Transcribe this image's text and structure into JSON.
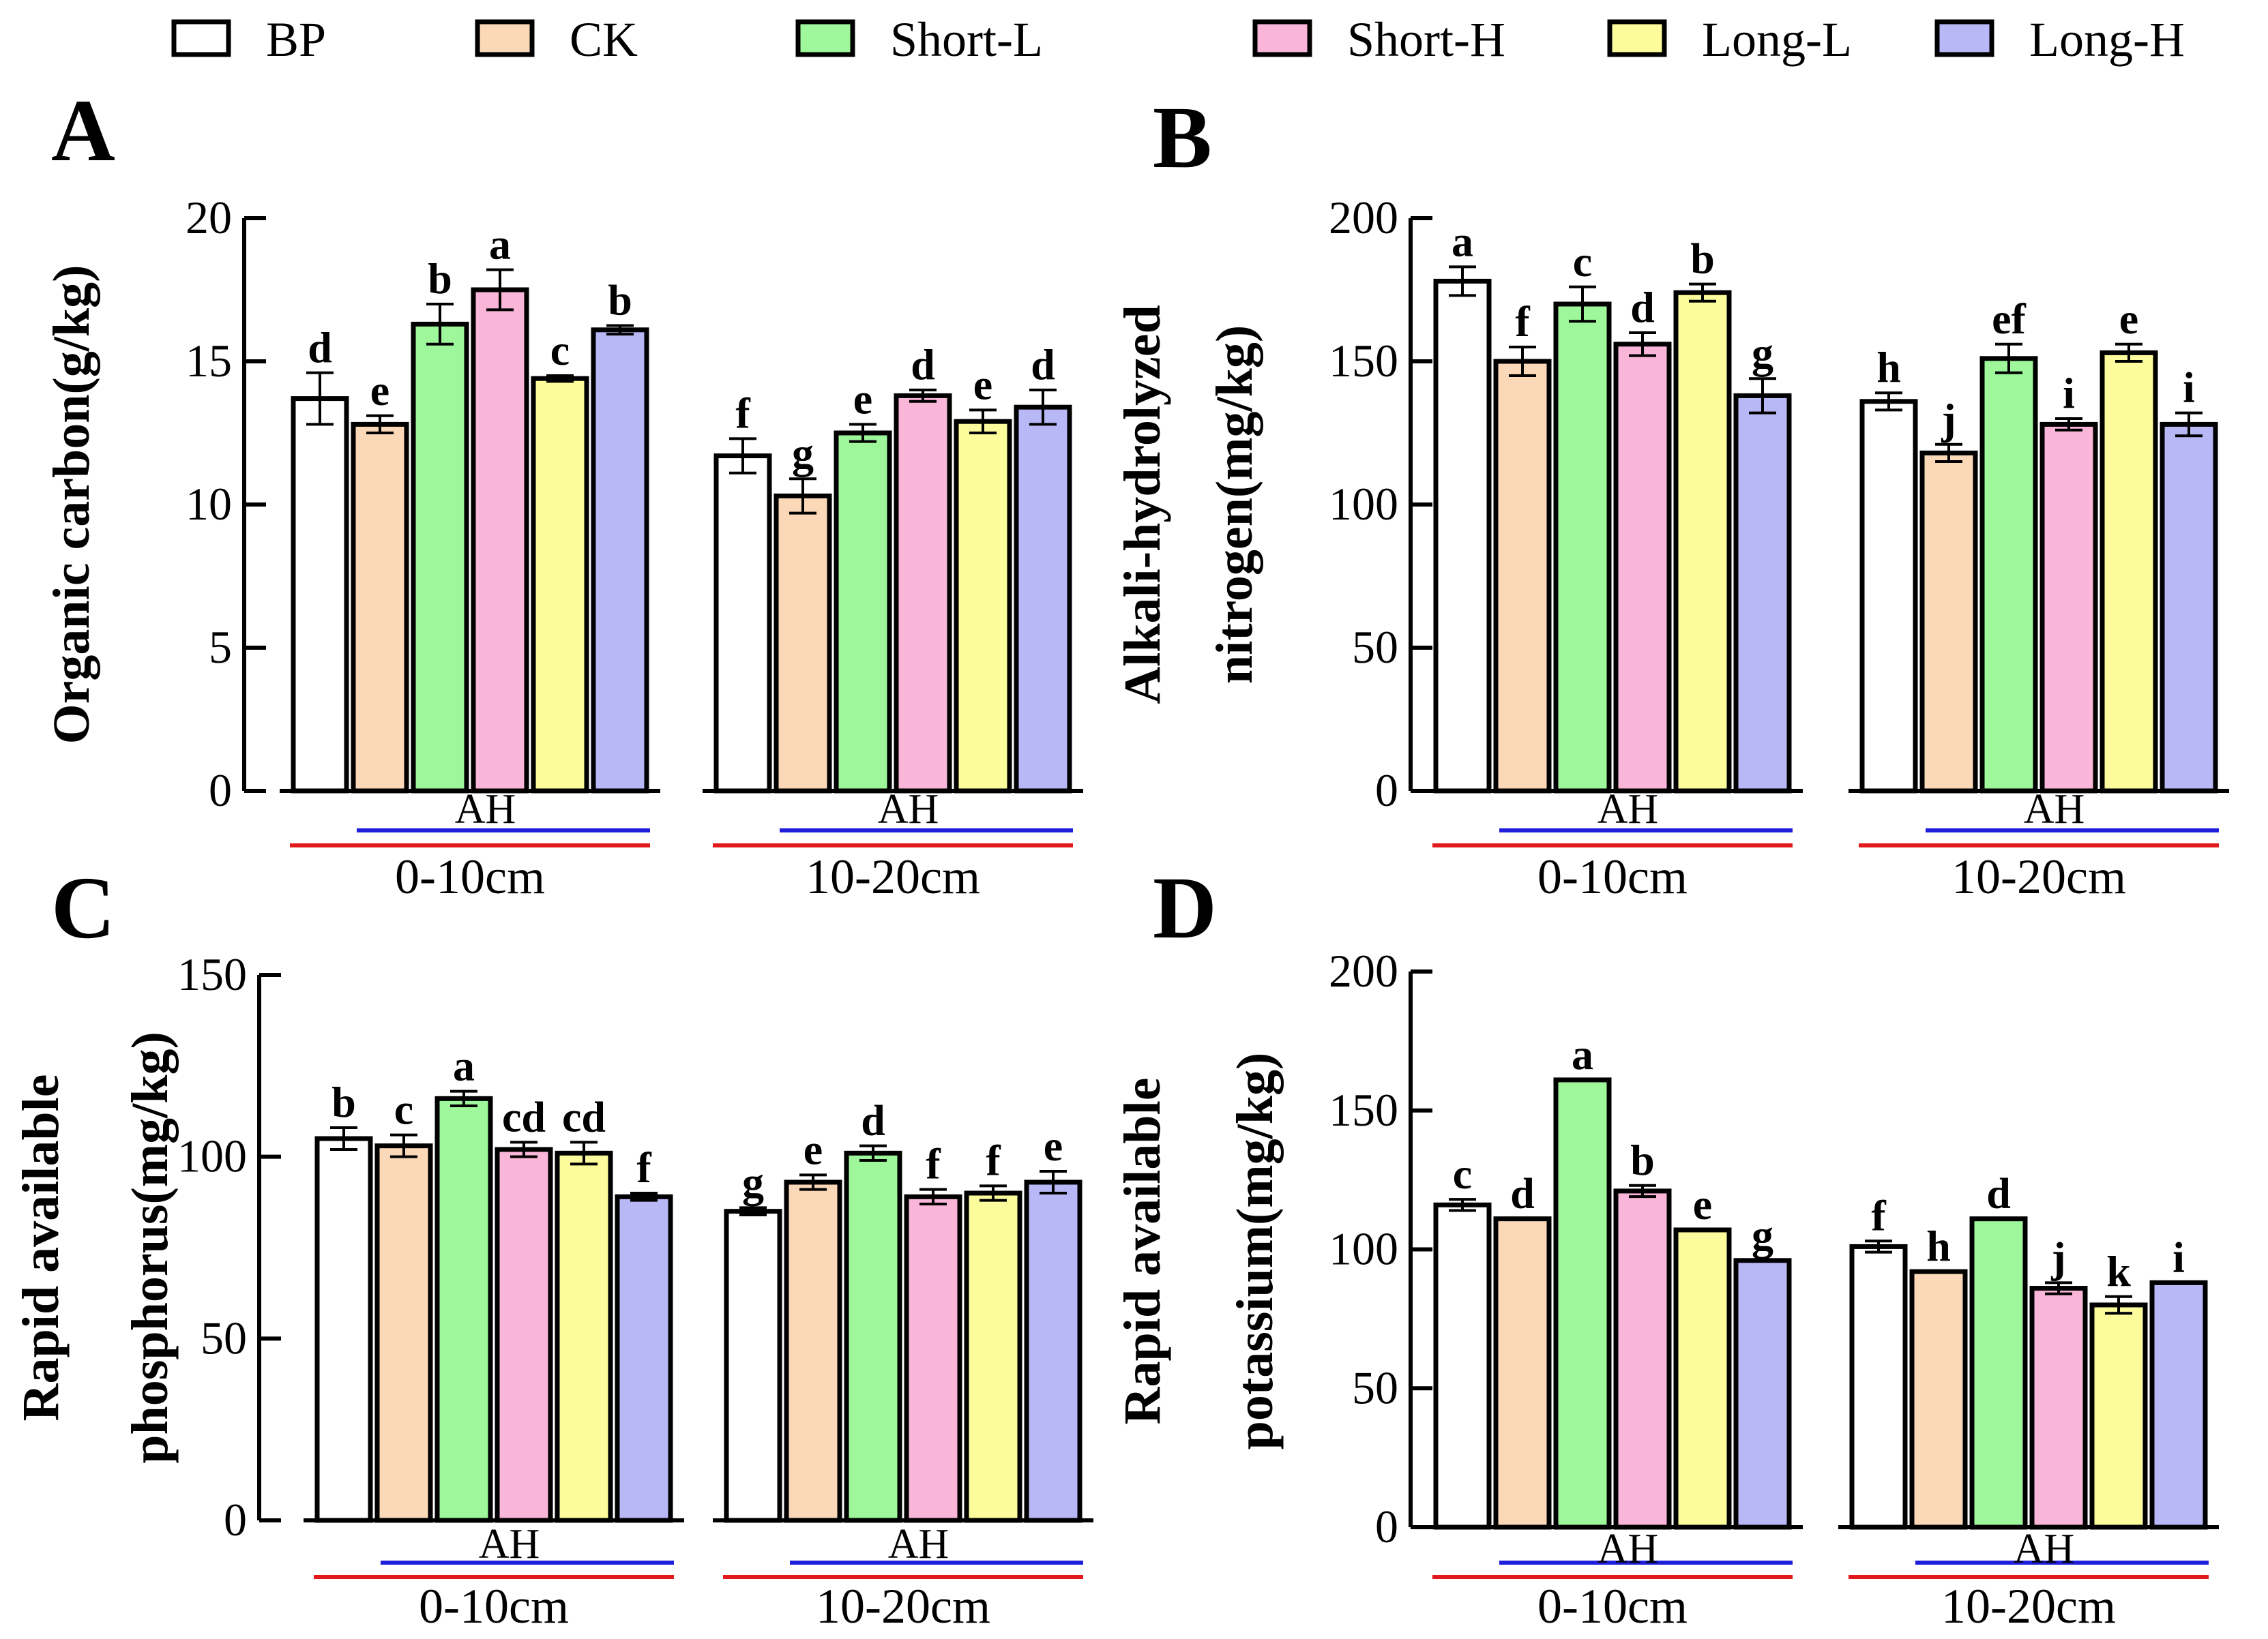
{
  "legend": [
    {
      "name": "BP",
      "color": "#ffffff"
    },
    {
      "name": "CK",
      "color": "#fbd9b8"
    },
    {
      "name": "Short-L",
      "color": "#9ef79a"
    },
    {
      "name": "Short-H",
      "color": "#f9b6d9"
    },
    {
      "name": "Long-L",
      "color": "#fcfc9c"
    },
    {
      "name": "Long-H",
      "color": "#b8b8f7"
    }
  ],
  "annotations": {
    "ah": "AH",
    "bracket_red": "#e31a1c",
    "bracket_blue": "#1f1fdb"
  },
  "chart_data": [
    {
      "panel": "A",
      "type": "bar",
      "ylabel": [
        "Organic carbon(g/kg)"
      ],
      "ylim": [
        0,
        20
      ],
      "yticks": [
        0,
        5,
        10,
        15,
        20
      ],
      "categories": [
        "0-10cm",
        "10-20cm"
      ],
      "series": [
        {
          "name": "BP",
          "values": [
            13.7,
            11.7
          ],
          "errors": [
            0.9,
            0.6
          ],
          "letters": [
            "d",
            "f"
          ]
        },
        {
          "name": "CK",
          "values": [
            12.8,
            10.3
          ],
          "errors": [
            0.3,
            0.6
          ],
          "letters": [
            "e",
            "g"
          ]
        },
        {
          "name": "Short-L",
          "values": [
            16.3,
            12.5
          ],
          "errors": [
            0.7,
            0.3
          ],
          "letters": [
            "b",
            "e"
          ]
        },
        {
          "name": "Short-H",
          "values": [
            17.5,
            13.8
          ],
          "errors": [
            0.7,
            0.2
          ],
          "letters": [
            "a",
            "d"
          ]
        },
        {
          "name": "Long-L",
          "values": [
            14.4,
            12.9
          ],
          "errors": [
            0.1,
            0.4
          ],
          "letters": [
            "c",
            "e"
          ]
        },
        {
          "name": "Long-H",
          "values": [
            16.1,
            13.4
          ],
          "errors": [
            0.15,
            0.6
          ],
          "letters": [
            "b",
            "d"
          ]
        }
      ]
    },
    {
      "panel": "B",
      "type": "bar",
      "ylabel": [
        "Alkali-hydrolyzed",
        "nitrogen(mg/kg)"
      ],
      "ylim": [
        0,
        200
      ],
      "yticks": [
        0,
        50,
        100,
        150,
        200
      ],
      "categories": [
        "0-10cm",
        "10-20cm"
      ],
      "series": [
        {
          "name": "BP",
          "values": [
            178,
            136
          ],
          "errors": [
            5,
            3
          ],
          "letters": [
            "a",
            "h"
          ]
        },
        {
          "name": "CK",
          "values": [
            150,
            118
          ],
          "errors": [
            5,
            3
          ],
          "letters": [
            "f",
            "j"
          ]
        },
        {
          "name": "Short-L",
          "values": [
            170,
            151
          ],
          "errors": [
            6,
            5
          ],
          "letters": [
            "c",
            "ef"
          ]
        },
        {
          "name": "Short-H",
          "values": [
            156,
            128
          ],
          "errors": [
            4,
            2
          ],
          "letters": [
            "d",
            "i"
          ]
        },
        {
          "name": "Long-L",
          "values": [
            174,
            153
          ],
          "errors": [
            3,
            3
          ],
          "letters": [
            "b",
            "e"
          ]
        },
        {
          "name": "Long-H",
          "values": [
            138,
            128
          ],
          "errors": [
            6,
            4
          ],
          "letters": [
            "g",
            "i"
          ]
        }
      ]
    },
    {
      "panel": "C",
      "type": "bar",
      "ylabel": [
        "Rapid available",
        "phosphorus(mg/kg)"
      ],
      "ylim": [
        0,
        150
      ],
      "yticks": [
        0,
        50,
        100,
        150
      ],
      "categories": [
        "0-10cm",
        "10-20cm"
      ],
      "series": [
        {
          "name": "BP",
          "values": [
            105,
            85
          ],
          "errors": [
            3,
            1
          ],
          "letters": [
            "b",
            "g"
          ]
        },
        {
          "name": "CK",
          "values": [
            103,
            93
          ],
          "errors": [
            3,
            2
          ],
          "letters": [
            "c",
            "e"
          ]
        },
        {
          "name": "Short-L",
          "values": [
            116,
            101
          ],
          "errors": [
            2,
            2
          ],
          "letters": [
            "a",
            "d"
          ]
        },
        {
          "name": "Short-H",
          "values": [
            102,
            89
          ],
          "errors": [
            2,
            2
          ],
          "letters": [
            "cd",
            "f"
          ]
        },
        {
          "name": "Long-L",
          "values": [
            101,
            90
          ],
          "errors": [
            3,
            2
          ],
          "letters": [
            "cd",
            "f"
          ]
        },
        {
          "name": "Long-H",
          "values": [
            89,
            93
          ],
          "errors": [
            1,
            3
          ],
          "letters": [
            "f",
            "e"
          ]
        }
      ]
    },
    {
      "panel": "D",
      "type": "bar",
      "ylabel": [
        "Rapid available",
        "potassium(mg/kg)"
      ],
      "ylim": [
        0,
        200
      ],
      "yticks": [
        0,
        50,
        100,
        150,
        200
      ],
      "categories": [
        "0-10cm",
        "10-20cm"
      ],
      "series": [
        {
          "name": "BP",
          "values": [
            116,
            101
          ],
          "errors": [
            2,
            2
          ],
          "letters": [
            "c",
            "f"
          ]
        },
        {
          "name": "CK",
          "values": [
            111,
            92
          ],
          "errors": [
            0,
            0
          ],
          "letters": [
            "d",
            "h"
          ]
        },
        {
          "name": "Short-L",
          "values": [
            161,
            111
          ],
          "errors": [
            0,
            0
          ],
          "letters": [
            "a",
            "d"
          ]
        },
        {
          "name": "Short-H",
          "values": [
            121,
            86
          ],
          "errors": [
            2,
            2
          ],
          "letters": [
            "b",
            "j"
          ]
        },
        {
          "name": "Long-L",
          "values": [
            107,
            80
          ],
          "errors": [
            0,
            3
          ],
          "letters": [
            "e",
            "k"
          ]
        },
        {
          "name": "Long-H",
          "values": [
            96,
            88
          ],
          "errors": [
            0,
            0
          ],
          "letters": [
            "g",
            "i"
          ]
        }
      ]
    }
  ]
}
